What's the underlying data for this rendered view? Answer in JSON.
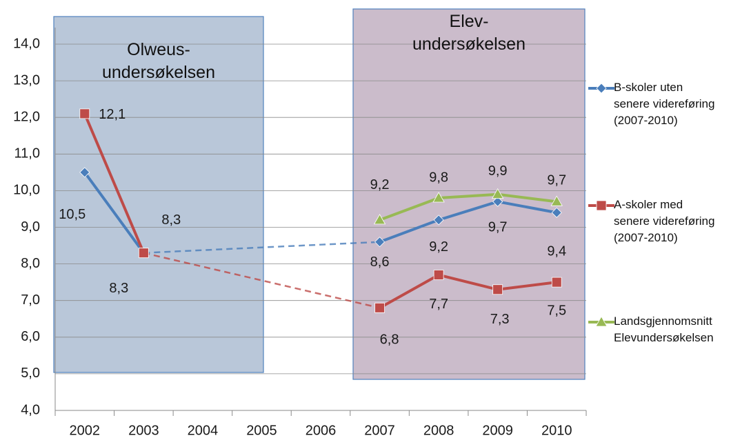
{
  "chart_data": {
    "type": "line",
    "categories": [
      "2002",
      "2003",
      "2004",
      "2005",
      "2006",
      "2007",
      "2008",
      "2009",
      "2010"
    ],
    "series": [
      {
        "name": "B-skoler uten\nsenere videreføring\n(2007-2010)",
        "color": "#4a7ebb",
        "marker": "diamond",
        "values": [
          10.5,
          8.3,
          null,
          null,
          null,
          8.6,
          9.2,
          9.7,
          9.4
        ],
        "value_labels": [
          "10,5",
          "8,3",
          null,
          null,
          null,
          "8,6",
          "9,2",
          "9,7",
          "9,4"
        ]
      },
      {
        "name": "A-skoler med\nsenere videreføring\n(2007-2010)",
        "color": "#be4b48",
        "marker": "square",
        "values": [
          12.1,
          8.3,
          null,
          null,
          null,
          6.8,
          7.7,
          7.3,
          7.5
        ],
        "value_labels": [
          "12,1",
          "8,3",
          null,
          null,
          null,
          "6,8",
          "7,7",
          "7,3",
          "7,5"
        ]
      },
      {
        "name": "Landsgjennomsnitt\nElevundersøkelsen",
        "color": "#98b954",
        "marker": "triangle",
        "values": [
          null,
          null,
          null,
          null,
          null,
          9.2,
          9.8,
          9.9,
          9.7
        ],
        "value_labels": [
          null,
          null,
          null,
          null,
          null,
          "9,2",
          "9,8",
          "9,9",
          "9,7"
        ]
      }
    ],
    "annotations": [
      {
        "text": "Olweus-\nundersøkelsen",
        "color": "#b9c7d9"
      },
      {
        "text": "Elev-\nundersøkelsen",
        "color": "#cbbccb"
      }
    ],
    "ylim": [
      4,
      14.4
    ],
    "yticks": [
      {
        "value": 4,
        "label": "4,0"
      },
      {
        "value": 5,
        "label": "5,0"
      },
      {
        "value": 6,
        "label": "6,0"
      },
      {
        "value": 7,
        "label": "7,0"
      },
      {
        "value": 8,
        "label": "8,0"
      },
      {
        "value": 9,
        "label": "9,0"
      },
      {
        "value": 10,
        "label": "10,0"
      },
      {
        "value": 11,
        "label": "11,0"
      },
      {
        "value": 12,
        "label": "12,0"
      },
      {
        "value": 13,
        "label": "13,0"
      },
      {
        "value": 14,
        "label": "14,0"
      }
    ],
    "grid": true,
    "legend": "right"
  }
}
